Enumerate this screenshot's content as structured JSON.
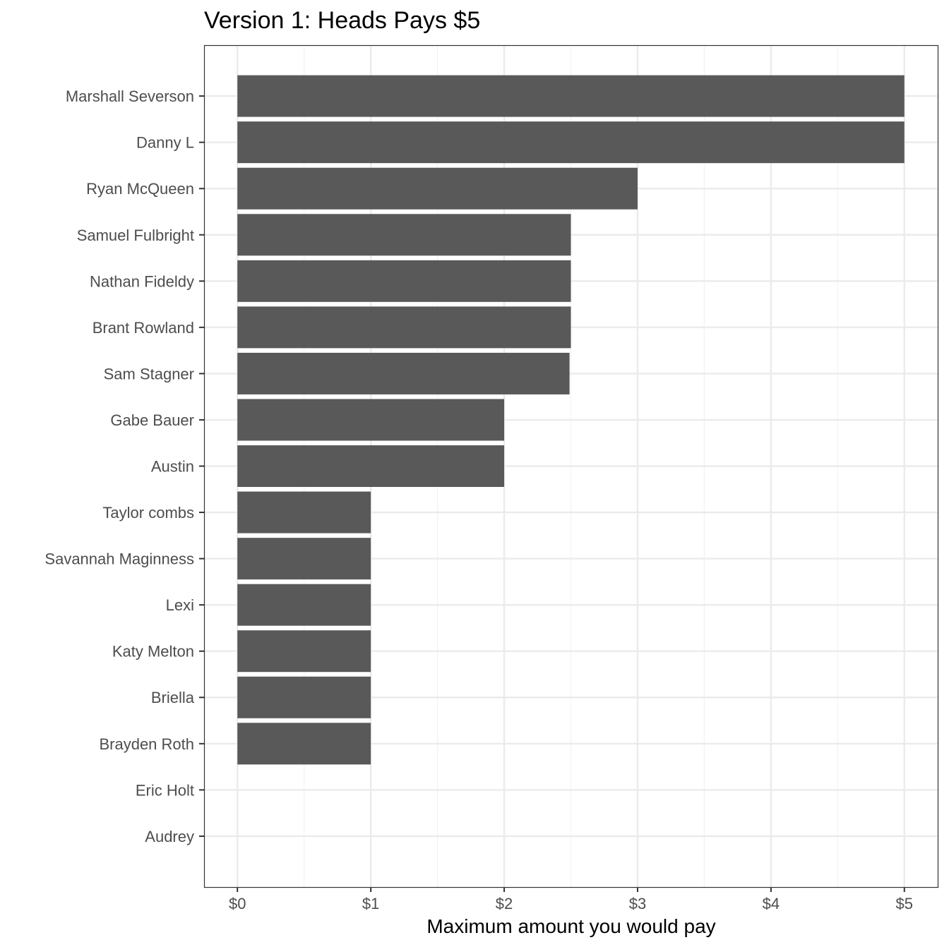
{
  "chart_data": {
    "type": "bar",
    "orientation": "horizontal",
    "title": "Version 1: Heads Pays $5",
    "xlabel": "Maximum amount you would pay",
    "ylabel": "",
    "categories": [
      "Marshall Severson",
      "Danny L",
      "Ryan McQueen",
      "Samuel Fulbright",
      "Nathan Fideldy",
      "Brant Rowland",
      "Sam Stagner",
      "Gabe Bauer",
      "Austin",
      "Taylor combs",
      "Savannah Maginness",
      "Lexi",
      "Katy Melton",
      "Briella",
      "Brayden Roth",
      "Eric Holt",
      "Audrey"
    ],
    "values": [
      5,
      5,
      3,
      2.5,
      2.5,
      2.5,
      2.49,
      2,
      2,
      1,
      1,
      1,
      1,
      1,
      1,
      0,
      0
    ],
    "xlim": [
      -0.25,
      5.25
    ],
    "xticks": [
      0,
      1,
      2,
      3,
      4,
      5
    ],
    "xtick_labels": [
      "$0",
      "$1",
      "$2",
      "$3",
      "$4",
      "$5"
    ],
    "grid": true,
    "colors": {
      "bar": "#595959",
      "grid_major": "#ebebeb",
      "grid_minor": "#f2f2f2",
      "panel_border": "#333333",
      "tick_text": "#4d4d4d",
      "title_text": "#000000"
    }
  }
}
